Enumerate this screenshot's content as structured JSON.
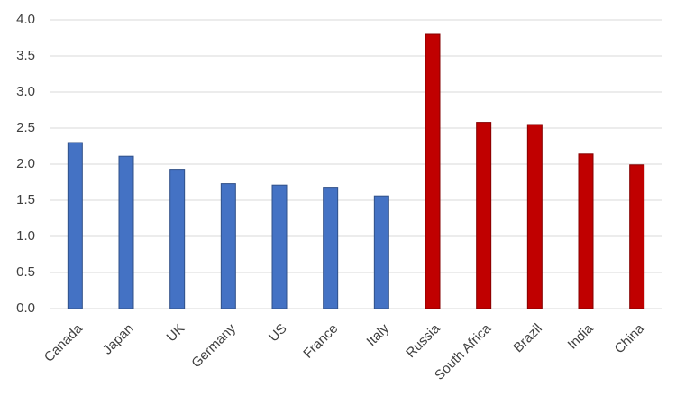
{
  "chart_data": {
    "type": "bar",
    "categories": [
      "Canada",
      "Japan",
      "UK",
      "Germany",
      "US",
      "France",
      "Italy",
      "Russia",
      "South Africa",
      "Brazil",
      "India",
      "China"
    ],
    "values": [
      2.3,
      2.11,
      1.93,
      1.73,
      1.71,
      1.68,
      1.56,
      3.8,
      2.58,
      2.55,
      2.14,
      1.99
    ],
    "colors": [
      "#4472c4",
      "#4472c4",
      "#4472c4",
      "#4472c4",
      "#4472c4",
      "#4472c4",
      "#4472c4",
      "#c00000",
      "#c00000",
      "#c00000",
      "#c00000",
      "#c00000"
    ],
    "ylim": [
      0,
      4
    ],
    "yticks": [
      {
        "value": 0,
        "label": "0.0"
      },
      0.5,
      {
        "value": 1,
        "label": "1.0"
      },
      1.5,
      {
        "value": 2,
        "label": "2.0"
      },
      2.5,
      {
        "value": 3,
        "label": "3.0"
      },
      3.5,
      {
        "value": 4,
        "label": "4.0"
      }
    ],
    "grid": true
  }
}
